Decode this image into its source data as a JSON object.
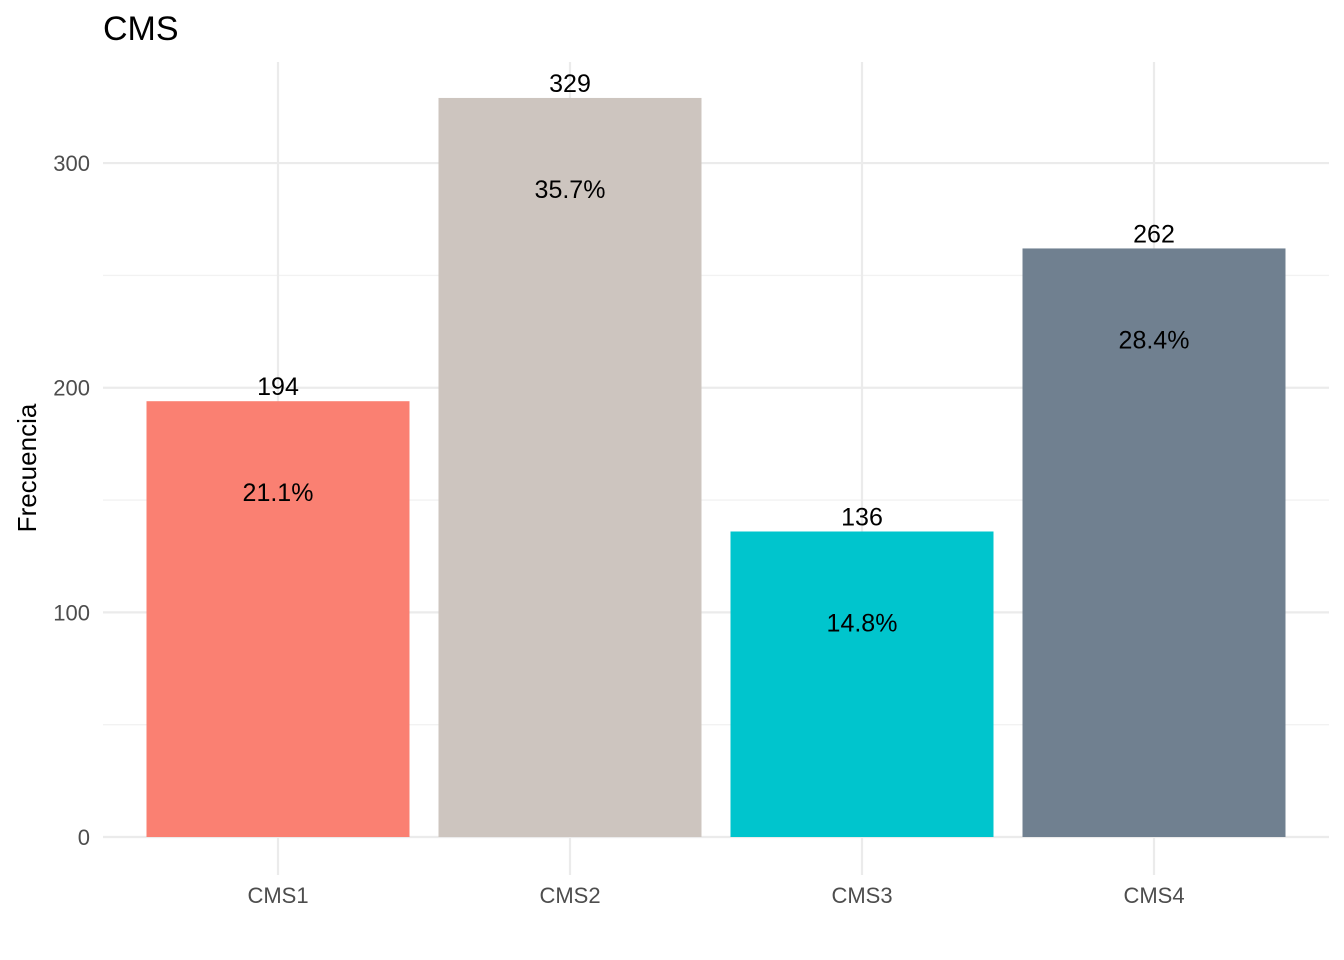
{
  "chart_data": {
    "type": "bar",
    "title": "CMS",
    "xlabel": "",
    "ylabel": "Frecuencia",
    "categories": [
      "CMS1",
      "CMS2",
      "CMS3",
      "CMS4"
    ],
    "values": [
      194,
      329,
      136,
      262
    ],
    "percent_labels": [
      "21.1%",
      "35.7%",
      "14.8%",
      "28.4%"
    ],
    "colors": [
      "#fa8072",
      "#cdc5bf",
      "#00c5cd",
      "#708090"
    ],
    "ylim": [
      0,
      345
    ],
    "y_ticks": [
      0,
      100,
      200,
      300
    ],
    "y_tick_labels": [
      "0",
      "100",
      "200",
      "300"
    ],
    "grid": true,
    "legend": "none"
  }
}
